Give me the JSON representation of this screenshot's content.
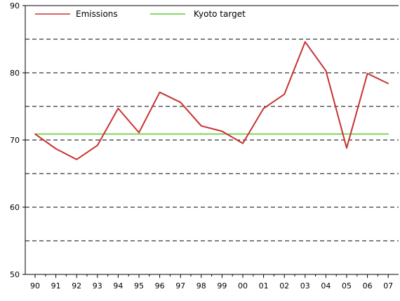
{
  "chart_data": {
    "type": "line",
    "title": "",
    "xlabel": "",
    "ylabel": "",
    "categories": [
      "90",
      "91",
      "92",
      "93",
      "94",
      "95",
      "96",
      "97",
      "98",
      "99",
      "00",
      "01",
      "02",
      "03",
      "04",
      "05",
      "06",
      "07"
    ],
    "ylim": [
      50,
      90
    ],
    "yticks": [
      50,
      60,
      70,
      80,
      90
    ],
    "gridlines": [
      55,
      60,
      65,
      70,
      75,
      80,
      85
    ],
    "grid": "horizontal dashed",
    "legend_position": "top",
    "series": [
      {
        "name": "Emissions",
        "color": "#c83232",
        "values": [
          70.9,
          68.7,
          67.1,
          69.2,
          74.7,
          71.1,
          77.1,
          75.6,
          72.1,
          71.3,
          69.5,
          74.7,
          76.8,
          84.6,
          80.3,
          68.8,
          79.9,
          78.4
        ]
      },
      {
        "name": "Kyoto target",
        "color": "#66cc33",
        "values": [
          70.9,
          70.9,
          70.9,
          70.9,
          70.9,
          70.9,
          70.9,
          70.9,
          70.9,
          70.9,
          70.9,
          70.9,
          70.9,
          70.9,
          70.9,
          70.9,
          70.9,
          70.9
        ]
      }
    ]
  }
}
